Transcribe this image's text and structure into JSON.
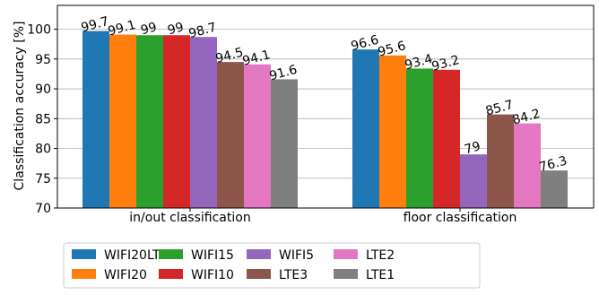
{
  "chart_data": {
    "type": "bar",
    "ylabel": "Classification accuracy [%]",
    "xlabel": "",
    "ylim": [
      70,
      104
    ],
    "yticks": [
      70,
      75,
      80,
      85,
      90,
      95,
      100
    ],
    "grid": true,
    "legend_position": "bottom",
    "categories": [
      "in/out classification",
      "floor classification"
    ],
    "series": [
      {
        "name": "WIFI20LTE3",
        "color": "#1f77b4",
        "values": [
          99.7,
          96.6
        ]
      },
      {
        "name": "WIFI20",
        "color": "#ff7f0e",
        "values": [
          99.1,
          95.6
        ]
      },
      {
        "name": "WIFI15",
        "color": "#2ca02c",
        "values": [
          99,
          93.4
        ]
      },
      {
        "name": "WIFI10",
        "color": "#d62728",
        "values": [
          99,
          93.2
        ]
      },
      {
        "name": "WIFI5",
        "color": "#9467bd",
        "values": [
          98.7,
          79
        ]
      },
      {
        "name": "LTE3",
        "color": "#8c564b",
        "values": [
          94.5,
          85.7
        ]
      },
      {
        "name": "LTE2",
        "color": "#e377c2",
        "values": [
          94.1,
          84.2
        ]
      },
      {
        "name": "LTE1",
        "color": "#7f7f7f",
        "values": [
          91.6,
          76.3
        ]
      }
    ]
  }
}
